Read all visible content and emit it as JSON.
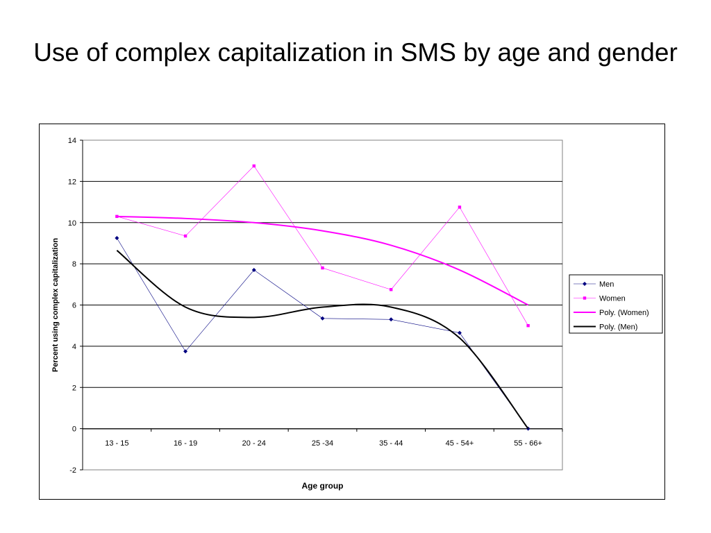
{
  "slide": {
    "title": "Use of complex capitalization in SMS by age and gender"
  },
  "chart_data": {
    "type": "line",
    "title": "",
    "xlabel": "Age group",
    "ylabel": "Percent using complex capitalization",
    "categories": [
      "13 - 15",
      "16 - 19",
      "20 - 24",
      "25 -34",
      "35 - 44",
      "45 - 54+",
      "55 - 66+"
    ],
    "ylim": [
      -2,
      14
    ],
    "yticks": [
      -2,
      0,
      2,
      4,
      6,
      8,
      10,
      12,
      14
    ],
    "grid": "horizontal",
    "legend_position": "right",
    "series": [
      {
        "name": "Men",
        "values": [
          9.25,
          3.75,
          7.7,
          5.35,
          5.3,
          4.65,
          0.0
        ],
        "color": "#000080",
        "marker": "diamond"
      },
      {
        "name": "Women",
        "values": [
          10.3,
          9.35,
          12.75,
          7.8,
          6.75,
          10.75,
          5.0
        ],
        "color": "#ff00ff",
        "marker": "square"
      }
    ],
    "trendlines": [
      {
        "name": "Poly. (Women)",
        "of": "Women",
        "kind": "polynomial",
        "values": [
          10.3,
          10.2,
          10.0,
          9.6,
          8.9,
          7.7,
          6.0
        ],
        "color": "#ff00ff"
      },
      {
        "name": "Poly. (Men)",
        "of": "Men",
        "kind": "polynomial",
        "values": [
          8.65,
          5.9,
          5.4,
          5.9,
          5.9,
          4.4,
          0.0
        ],
        "color": "#000000"
      }
    ]
  }
}
